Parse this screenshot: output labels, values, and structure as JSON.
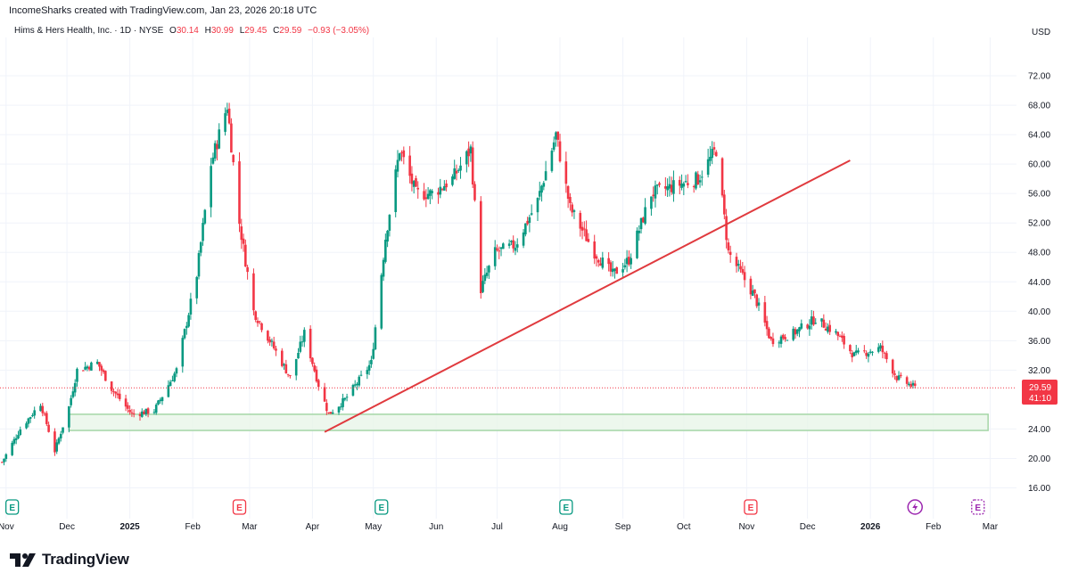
{
  "header": {
    "attribution": "IncomeSharks created with TradingView.com, Jan 23, 2026 20:18 UTC"
  },
  "legend": {
    "symbol": "Hims & Hers Health, Inc. · 1D · NYSE",
    "open_label": "O",
    "open": "30.14",
    "high_label": "H",
    "high": "30.99",
    "low_label": "L",
    "low": "29.45",
    "close_label": "C",
    "close": "29.59",
    "change": "−0.93 (−3.05%)"
  },
  "price_tag": {
    "price": "29.59",
    "countdown": "41:10"
  },
  "footer": {
    "brand": "TradingView",
    "logo_icon": "tradingview-logo-icon"
  },
  "colors": {
    "up": "#089981",
    "down": "#f23645",
    "trendline": "#e03a3e",
    "zone_fill": "#e8f5e9",
    "zone_border": "#a5d6a7",
    "earnings": "#089981",
    "earnings_neg": "#f23645",
    "dividend": "#9c27b0"
  },
  "chart_data": {
    "type": "candlestick",
    "currency": "USD",
    "yticks": [
      "72.00",
      "68.00",
      "64.00",
      "60.00",
      "56.00",
      "52.00",
      "48.00",
      "44.00",
      "40.00",
      "36.00",
      "32.00",
      "24.00",
      "20.00",
      "16.00"
    ],
    "ylim": [
      14,
      76
    ],
    "xticks": [
      {
        "label": "Nov",
        "date": "2024-11-01",
        "bold": false
      },
      {
        "label": "Dec",
        "date": "2024-12-01",
        "bold": false
      },
      {
        "label": "2025",
        "date": "2025-01-01",
        "bold": true
      },
      {
        "label": "Feb",
        "date": "2025-02-01",
        "bold": false
      },
      {
        "label": "Mar",
        "date": "2025-03-01",
        "bold": false
      },
      {
        "label": "Apr",
        "date": "2025-04-01",
        "bold": false
      },
      {
        "label": "May",
        "date": "2025-05-01",
        "bold": false
      },
      {
        "label": "Jun",
        "date": "2025-06-01",
        "bold": false
      },
      {
        "label": "Jul",
        "date": "2025-07-01",
        "bold": false
      },
      {
        "label": "Aug",
        "date": "2025-08-01",
        "bold": false
      },
      {
        "label": "Sep",
        "date": "2025-09-01",
        "bold": false
      },
      {
        "label": "Oct",
        "date": "2025-10-01",
        "bold": false
      },
      {
        "label": "Nov",
        "date": "2025-11-01",
        "bold": false
      },
      {
        "label": "Dec",
        "date": "2025-12-01",
        "bold": false
      },
      {
        "label": "2026",
        "date": "2026-01-01",
        "bold": true
      },
      {
        "label": "Feb",
        "date": "2026-02-01",
        "bold": false
      },
      {
        "label": "Mar",
        "date": "2026-03-01",
        "bold": false
      }
    ],
    "xlim": [
      "2024-10-29",
      "2026-03-14"
    ],
    "last_price": 29.59,
    "earnings_markers": [
      {
        "date": "2024-11-04",
        "type": "up",
        "label": "E"
      },
      {
        "date": "2025-02-24",
        "type": "down",
        "label": "E"
      },
      {
        "date": "2025-05-05",
        "type": "up",
        "label": "E"
      },
      {
        "date": "2025-08-04",
        "type": "up",
        "label": "E"
      },
      {
        "date": "2025-11-03",
        "type": "down",
        "label": "E"
      },
      {
        "date": "2026-02-23",
        "type": "upcoming",
        "label": "E"
      }
    ],
    "dividend_marker": {
      "date": "2026-01-23"
    },
    "support_zone": {
      "start": "2024-12-02",
      "end": "2026-02-28",
      "low": 23.8,
      "high": 26.0
    },
    "trendline": {
      "start_date": "2025-04-07",
      "start_price": 23.6,
      "end_date": "2025-12-22",
      "end_price": 60.5
    },
    "ohlc_anchors": [
      [
        "2024-10-30",
        19.5
      ],
      [
        "2024-11-08",
        24
      ],
      [
        "2024-11-18",
        27.5
      ],
      [
        "2024-11-25",
        21
      ],
      [
        "2024-12-02",
        27
      ],
      [
        "2024-12-06",
        32
      ],
      [
        "2024-12-16",
        33
      ],
      [
        "2024-12-23",
        29.5
      ],
      [
        "2025-01-02",
        26
      ],
      [
        "2025-01-13",
        26.5
      ],
      [
        "2025-01-24",
        32
      ],
      [
        "2025-02-03",
        45
      ],
      [
        "2025-02-10",
        60
      ],
      [
        "2025-02-18",
        68
      ],
      [
        "2025-02-24",
        52
      ],
      [
        "2025-03-03",
        40
      ],
      [
        "2025-03-13",
        35
      ],
      [
        "2025-03-21",
        31
      ],
      [
        "2025-03-28",
        37
      ],
      [
        "2025-04-04",
        30
      ],
      [
        "2025-04-09",
        26
      ],
      [
        "2025-04-17",
        28
      ],
      [
        "2025-04-25",
        31
      ],
      [
        "2025-04-30",
        33
      ],
      [
        "2025-05-07",
        50
      ],
      [
        "2025-05-14",
        62
      ],
      [
        "2025-05-22",
        56
      ],
      [
        "2025-05-30",
        56
      ],
      [
        "2025-06-09",
        58
      ],
      [
        "2025-06-18",
        62
      ],
      [
        "2025-06-23",
        43
      ],
      [
        "2025-06-30",
        48
      ],
      [
        "2025-07-10",
        49
      ],
      [
        "2025-07-21",
        55
      ],
      [
        "2025-07-30",
        64
      ],
      [
        "2025-08-06",
        54
      ],
      [
        "2025-08-18",
        48
      ],
      [
        "2025-08-27",
        45
      ],
      [
        "2025-09-04",
        47
      ],
      [
        "2025-09-15",
        56
      ],
      [
        "2025-09-26",
        57
      ],
      [
        "2025-10-08",
        58
      ],
      [
        "2025-10-17",
        62
      ],
      [
        "2025-10-23",
        48
      ],
      [
        "2025-11-05",
        42
      ],
      [
        "2025-11-13",
        36
      ],
      [
        "2025-11-24",
        37
      ],
      [
        "2025-12-05",
        39
      ],
      [
        "2025-12-15",
        37
      ],
      [
        "2025-12-24",
        34
      ],
      [
        "2026-01-06",
        35
      ],
      [
        "2026-01-14",
        31
      ],
      [
        "2026-01-23",
        29.59
      ]
    ]
  }
}
